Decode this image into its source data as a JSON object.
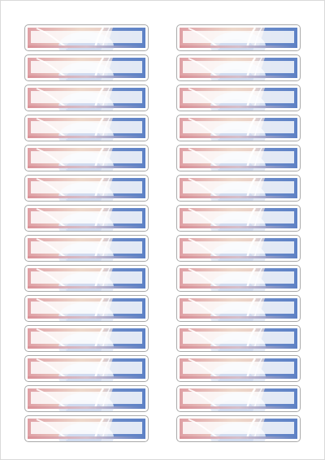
{
  "sheet": {
    "label_count": 28,
    "columns": 2,
    "rows": 14
  },
  "colors": {
    "label_border": "#a9a9a9",
    "red_accent": "#d98f95",
    "blue_accent": "#5b7fc4",
    "beige_band": "#ead2c2",
    "pale_blue_swirl": "#dfe7f4",
    "white_panel": "#ffffff"
  },
  "icons": {
    "label_art": "red-white-blue-swirl-graphic"
  }
}
